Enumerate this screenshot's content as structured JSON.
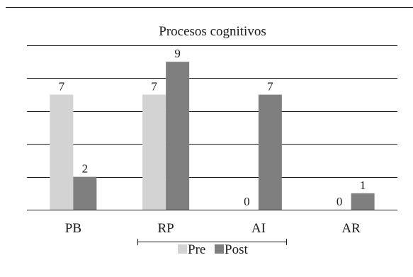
{
  "chart_data": {
    "type": "bar",
    "title": "Procesos cognitivos",
    "categories": [
      "PB",
      "RP",
      "AI",
      "AR"
    ],
    "series": [
      {
        "name": "Pre",
        "values": [
          7,
          7,
          0,
          0
        ]
      },
      {
        "name": "Post",
        "values": [
          2,
          9,
          7,
          1
        ]
      }
    ],
    "ylim": [
      0,
      10
    ],
    "grid": true,
    "legend": "bottom"
  },
  "colors": {
    "pre": "#d3d3d3",
    "post": "#7f7f7f",
    "grid": "#1a1a1a"
  }
}
